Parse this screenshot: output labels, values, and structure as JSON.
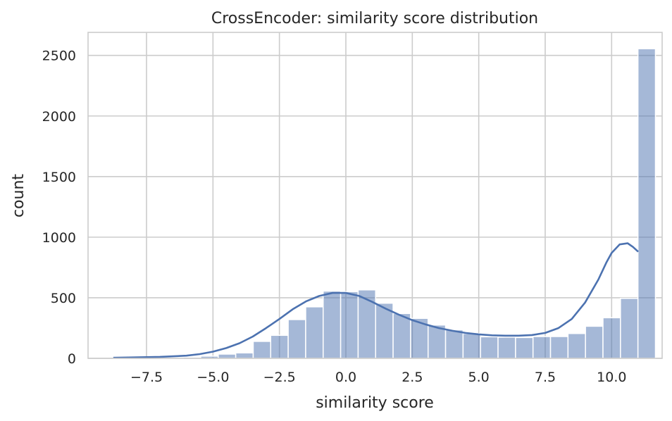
{
  "chart_data": {
    "type": "bar",
    "title": "CrossEncoder: similarity score distribution",
    "xlabel": "similarity score",
    "ylabel": "count",
    "xlim": [
      -9.7,
      11.9
    ],
    "ylim": [
      0,
      2690
    ],
    "xticks": [
      {
        "value": -7.5,
        "label": "−7.5"
      },
      {
        "value": -5.0,
        "label": "−5.0"
      },
      {
        "value": -2.5,
        "label": "−2.5"
      },
      {
        "value": 0.0,
        "label": "0.0"
      },
      {
        "value": 2.5,
        "label": "2.5"
      },
      {
        "value": 5.0,
        "label": "5.0"
      },
      {
        "value": 7.5,
        "label": "7.5"
      },
      {
        "value": 10.0,
        "label": "10.0"
      }
    ],
    "yticks": [
      {
        "value": 0,
        "label": "0"
      },
      {
        "value": 500,
        "label": "500"
      },
      {
        "value": 1000,
        "label": "1000"
      },
      {
        "value": 1500,
        "label": "1500"
      },
      {
        "value": 2000,
        "label": "2000"
      },
      {
        "value": 2500,
        "label": "2500"
      }
    ],
    "grid": true,
    "bins": {
      "start": -8.75,
      "width": 0.658,
      "counts": [
        5,
        3,
        5,
        8,
        10,
        18,
        35,
        45,
        140,
        190,
        320,
        425,
        555,
        550,
        565,
        455,
        370,
        330,
        275,
        235,
        205,
        178,
        175,
        172,
        180,
        180,
        205,
        265,
        335,
        495,
        2555
      ]
    },
    "kde": {
      "x": [
        -8.75,
        -8.0,
        -7.0,
        -6.0,
        -5.5,
        -5.0,
        -4.5,
        -4.0,
        -3.5,
        -3.0,
        -2.5,
        -2.0,
        -1.5,
        -1.0,
        -0.5,
        0.0,
        0.5,
        1.0,
        1.5,
        2.0,
        2.5,
        3.0,
        3.5,
        4.0,
        4.5,
        5.0,
        5.5,
        6.0,
        6.5,
        7.0,
        7.5,
        8.0,
        8.5,
        9.0,
        9.5,
        9.8,
        10.0,
        10.3,
        10.6,
        10.8,
        11.0
      ],
      "y": [
        5,
        8,
        12,
        22,
        35,
        55,
        85,
        125,
        180,
        250,
        325,
        405,
        470,
        515,
        540,
        540,
        515,
        465,
        410,
        360,
        315,
        280,
        250,
        228,
        210,
        198,
        190,
        187,
        187,
        192,
        210,
        250,
        325,
        460,
        650,
        790,
        870,
        940,
        950,
        920,
        880
      ]
    },
    "colors": {
      "bar": "#4c72b0",
      "line": "#4c72b0",
      "grid": "#cccccc",
      "background": "#ffffff"
    }
  }
}
